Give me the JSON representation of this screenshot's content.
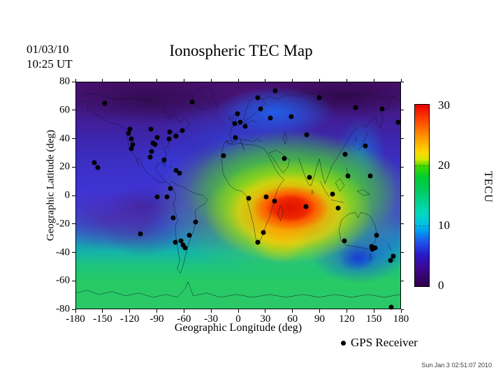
{
  "header": {
    "date": "01/03/10",
    "time": "10:25 UT",
    "title": "Ionospheric TEC Map"
  },
  "axes": {
    "x_label": "Geographic Longitude (deg)",
    "y_label": "Geographic Latitude (deg)",
    "x_ticks": [
      "-180",
      "-150",
      "-120",
      "-90",
      "-60",
      "-30",
      "0",
      "30",
      "60",
      "90",
      "120",
      "150",
      "180"
    ],
    "y_ticks": [
      "80",
      "60",
      "40",
      "20",
      "0",
      "-20",
      "-40",
      "-60",
      "-80"
    ]
  },
  "colorbar": {
    "unit_label": "TECU",
    "tick_labels": [
      "30",
      "20",
      "10",
      "0"
    ]
  },
  "legend": {
    "label": "GPS Receiver"
  },
  "footer": {
    "timestamp": "Sun Jan  3 02:51:07 2010"
  },
  "chart_data": {
    "type": "heatmap",
    "title": "Ionospheric TEC Map",
    "date": "01/03/10",
    "time": "10:25 UT",
    "xlabel": "Geographic Longitude (deg)",
    "ylabel": "Geographic Latitude (deg)",
    "xlim": [
      -180,
      180
    ],
    "ylim": [
      -80,
      80
    ],
    "grid": false,
    "colorbar": {
      "label": "TECU",
      "range": [
        0,
        30
      ],
      "ticks": [
        0,
        10,
        20,
        30
      ],
      "palette_top_to_bottom": [
        "#e80000",
        "#ff9800",
        "#ffd800",
        "#40d800",
        "#00cc66",
        "#00d8c0",
        "#0098f0",
        "#2050e8",
        "#2818c8",
        "#3c0890",
        "#30004a"
      ]
    },
    "features": [
      {
        "name": "equatorial-hotspot",
        "center_lon": 57,
        "center_lat": -9,
        "approx_tecu": 30
      },
      {
        "name": "high-tec-green-region",
        "extent": "Africa to Southeast Asia, lat 35 to -35",
        "approx_tecu": "15-25"
      },
      {
        "name": "northern-polar-low",
        "extent": "lat 60 to 80 all longitudes",
        "approx_tecu": "0-5"
      },
      {
        "name": "scandinavia-blue-enhancement",
        "center_lon": 40,
        "center_lat": 62,
        "approx_tecu": 10
      },
      {
        "name": "southeast-australia-low",
        "center_lon": 140,
        "center_lat": -40,
        "approx_tecu": 8
      },
      {
        "name": "southern-green-band",
        "extent": "lat -45 to -80 all longitudes",
        "approx_tecu": "15-20"
      },
      {
        "name": "pacific-purple-patches",
        "center_lon": -140,
        "center_lat": -16,
        "approx_tecu": 5
      }
    ],
    "gps_receivers": [
      [
        -148,
        65
      ],
      [
        -51,
        66
      ],
      [
        -120,
        47
      ],
      [
        -122,
        44
      ],
      [
        -119,
        40
      ],
      [
        -117,
        36
      ],
      [
        -119,
        33
      ],
      [
        -97,
        47
      ],
      [
        -90,
        41
      ],
      [
        -95,
        37
      ],
      [
        -92,
        36
      ],
      [
        -96,
        31
      ],
      [
        -98,
        27
      ],
      [
        -76,
        45
      ],
      [
        -69,
        42
      ],
      [
        -77,
        40
      ],
      [
        -62,
        46
      ],
      [
        -82,
        25
      ],
      [
        -69,
        18
      ],
      [
        -65,
        16
      ],
      [
        -160,
        23
      ],
      [
        -156,
        20
      ],
      [
        -75,
        5
      ],
      [
        -1,
        58
      ],
      [
        -4,
        51
      ],
      [
        2,
        52
      ],
      [
        8,
        49
      ],
      [
        -3,
        41
      ],
      [
        -16,
        28
      ],
      [
        22,
        69
      ],
      [
        25,
        61
      ],
      [
        36,
        55
      ],
      [
        59,
        56
      ],
      [
        41,
        74
      ],
      [
        90,
        69
      ],
      [
        130,
        62
      ],
      [
        76,
        43
      ],
      [
        141,
        35
      ],
      [
        119,
        29
      ],
      [
        51,
        26
      ],
      [
        79,
        13
      ],
      [
        122,
        14
      ],
      [
        147,
        14
      ],
      [
        160,
        61
      ],
      [
        178,
        52
      ],
      [
        -90,
        -1
      ],
      [
        -79,
        -1
      ],
      [
        -72,
        -16
      ],
      [
        -47,
        -19
      ],
      [
        -109,
        -27
      ],
      [
        -54,
        -28
      ],
      [
        -70,
        -33
      ],
      [
        -64,
        -32
      ],
      [
        -61,
        -35
      ],
      [
        -59,
        -37
      ],
      [
        12,
        -2
      ],
      [
        31,
        -1
      ],
      [
        40,
        -4
      ],
      [
        75,
        -8
      ],
      [
        28,
        -26
      ],
      [
        22,
        -33
      ],
      [
        105,
        1
      ],
      [
        111,
        -9
      ],
      [
        118,
        -32
      ],
      [
        154,
        -28
      ],
      [
        148,
        -36
      ],
      [
        152,
        -37
      ],
      [
        149,
        -38
      ],
      [
        172,
        -43
      ],
      [
        169,
        -46
      ],
      [
        170,
        -79
      ]
    ]
  }
}
